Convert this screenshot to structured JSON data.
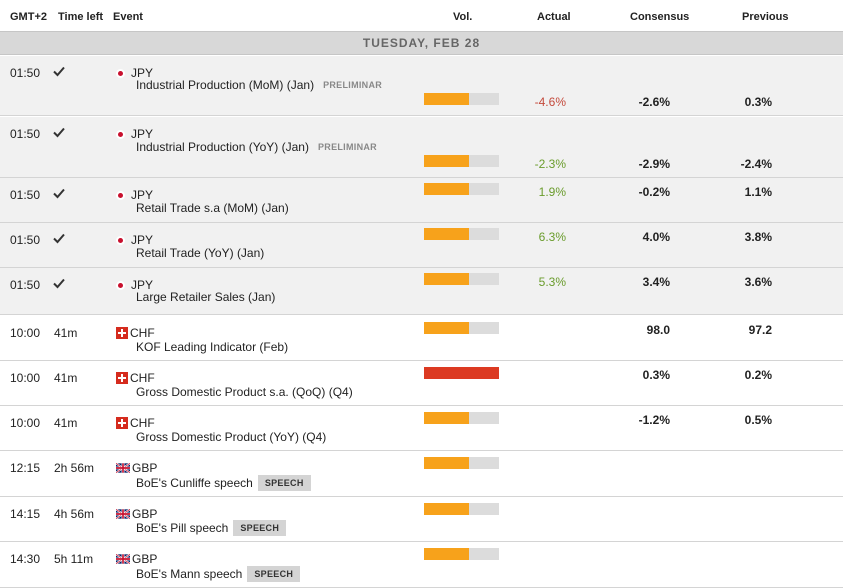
{
  "columns": {
    "timezone": "GMT+2",
    "time_left": "Time left",
    "event": "Event",
    "volume": "Vol.",
    "actual": "Actual",
    "consensus": "Consensus",
    "previous": "Previous"
  },
  "day_label": "TUESDAY, FEB 28",
  "colors": {
    "volume_medium": "#f7a21b",
    "volume_high": "#dc3a22",
    "volume_empty": "#dcdcdc",
    "positive": "#6a9c2c",
    "negative": "#c44a3c"
  },
  "events": [
    {
      "time": "01:50",
      "left": "",
      "done": true,
      "currency": "JPY",
      "flag": "jp-flag-icon",
      "title": "Industrial Production (MoM) (Jan)",
      "tag": "PRELIMINAR",
      "volatility": 0.6,
      "actual": "-4.6%",
      "actual_sign": "negative",
      "consensus": "-2.6%",
      "previous": "0.3%"
    },
    {
      "time": "01:50",
      "left": "",
      "done": true,
      "currency": "JPY",
      "flag": "jp-flag-icon",
      "title": "Industrial Production (YoY) (Jan)",
      "tag": "PRELIMINAR",
      "volatility": 0.6,
      "actual": "-2.3%",
      "actual_sign": "positive",
      "consensus": "-2.9%",
      "previous": "-2.4%"
    },
    {
      "time": "01:50",
      "left": "",
      "done": true,
      "currency": "JPY",
      "flag": "jp-flag-icon",
      "title": "Retail Trade s.a (MoM) (Jan)",
      "tag": "",
      "volatility": 0.6,
      "actual": "1.9%",
      "actual_sign": "positive",
      "consensus": "-0.2%",
      "previous": "1.1%"
    },
    {
      "time": "01:50",
      "left": "",
      "done": true,
      "currency": "JPY",
      "flag": "jp-flag-icon",
      "title": "Retail Trade (YoY) (Jan)",
      "tag": "",
      "volatility": 0.6,
      "actual": "6.3%",
      "actual_sign": "positive",
      "consensus": "4.0%",
      "previous": "3.8%"
    },
    {
      "time": "01:50",
      "left": "",
      "done": true,
      "currency": "JPY",
      "flag": "jp-flag-icon",
      "title": "Large Retailer Sales (Jan)",
      "tag": "",
      "volatility": 0.6,
      "actual": "5.3%",
      "actual_sign": "positive",
      "consensus": "3.4%",
      "previous": "3.6%"
    },
    {
      "time": "10:00",
      "left": "41m",
      "done": false,
      "currency": "CHF",
      "flag": "ch-flag-icon",
      "title": "KOF Leading Indicator (Feb)",
      "tag": "",
      "volatility": 0.6,
      "actual": "",
      "actual_sign": "",
      "consensus": "98.0",
      "previous": "97.2"
    },
    {
      "time": "10:00",
      "left": "41m",
      "done": false,
      "currency": "CHF",
      "flag": "ch-flag-icon",
      "title": "Gross Domestic Product s.a. (QoQ) (Q4)",
      "tag": "",
      "volatility": 1.0,
      "actual": "",
      "actual_sign": "",
      "consensus": "0.3%",
      "previous": "0.2%"
    },
    {
      "time": "10:00",
      "left": "41m",
      "done": false,
      "currency": "CHF",
      "flag": "ch-flag-icon",
      "title": "Gross Domestic Product (YoY) (Q4)",
      "tag": "",
      "volatility": 0.6,
      "actual": "",
      "actual_sign": "",
      "consensus": "-1.2%",
      "previous": "0.5%"
    },
    {
      "time": "12:15",
      "left": "2h 56m",
      "done": false,
      "currency": "GBP",
      "flag": "gb-flag-icon",
      "title": "BoE's Cunliffe speech",
      "badge": "SPEECH",
      "volatility": 0.6,
      "actual": "",
      "actual_sign": "",
      "consensus": "",
      "previous": ""
    },
    {
      "time": "14:15",
      "left": "4h 56m",
      "done": false,
      "currency": "GBP",
      "flag": "gb-flag-icon",
      "title": "BoE's Pill speech",
      "badge": "SPEECH",
      "volatility": 0.6,
      "actual": "",
      "actual_sign": "",
      "consensus": "",
      "previous": ""
    },
    {
      "time": "14:30",
      "left": "5h 11m",
      "done": false,
      "currency": "GBP",
      "flag": "gb-flag-icon",
      "title": "BoE's Mann speech",
      "badge": "SPEECH",
      "volatility": 0.6,
      "actual": "",
      "actual_sign": "",
      "consensus": "",
      "previous": ""
    }
  ]
}
